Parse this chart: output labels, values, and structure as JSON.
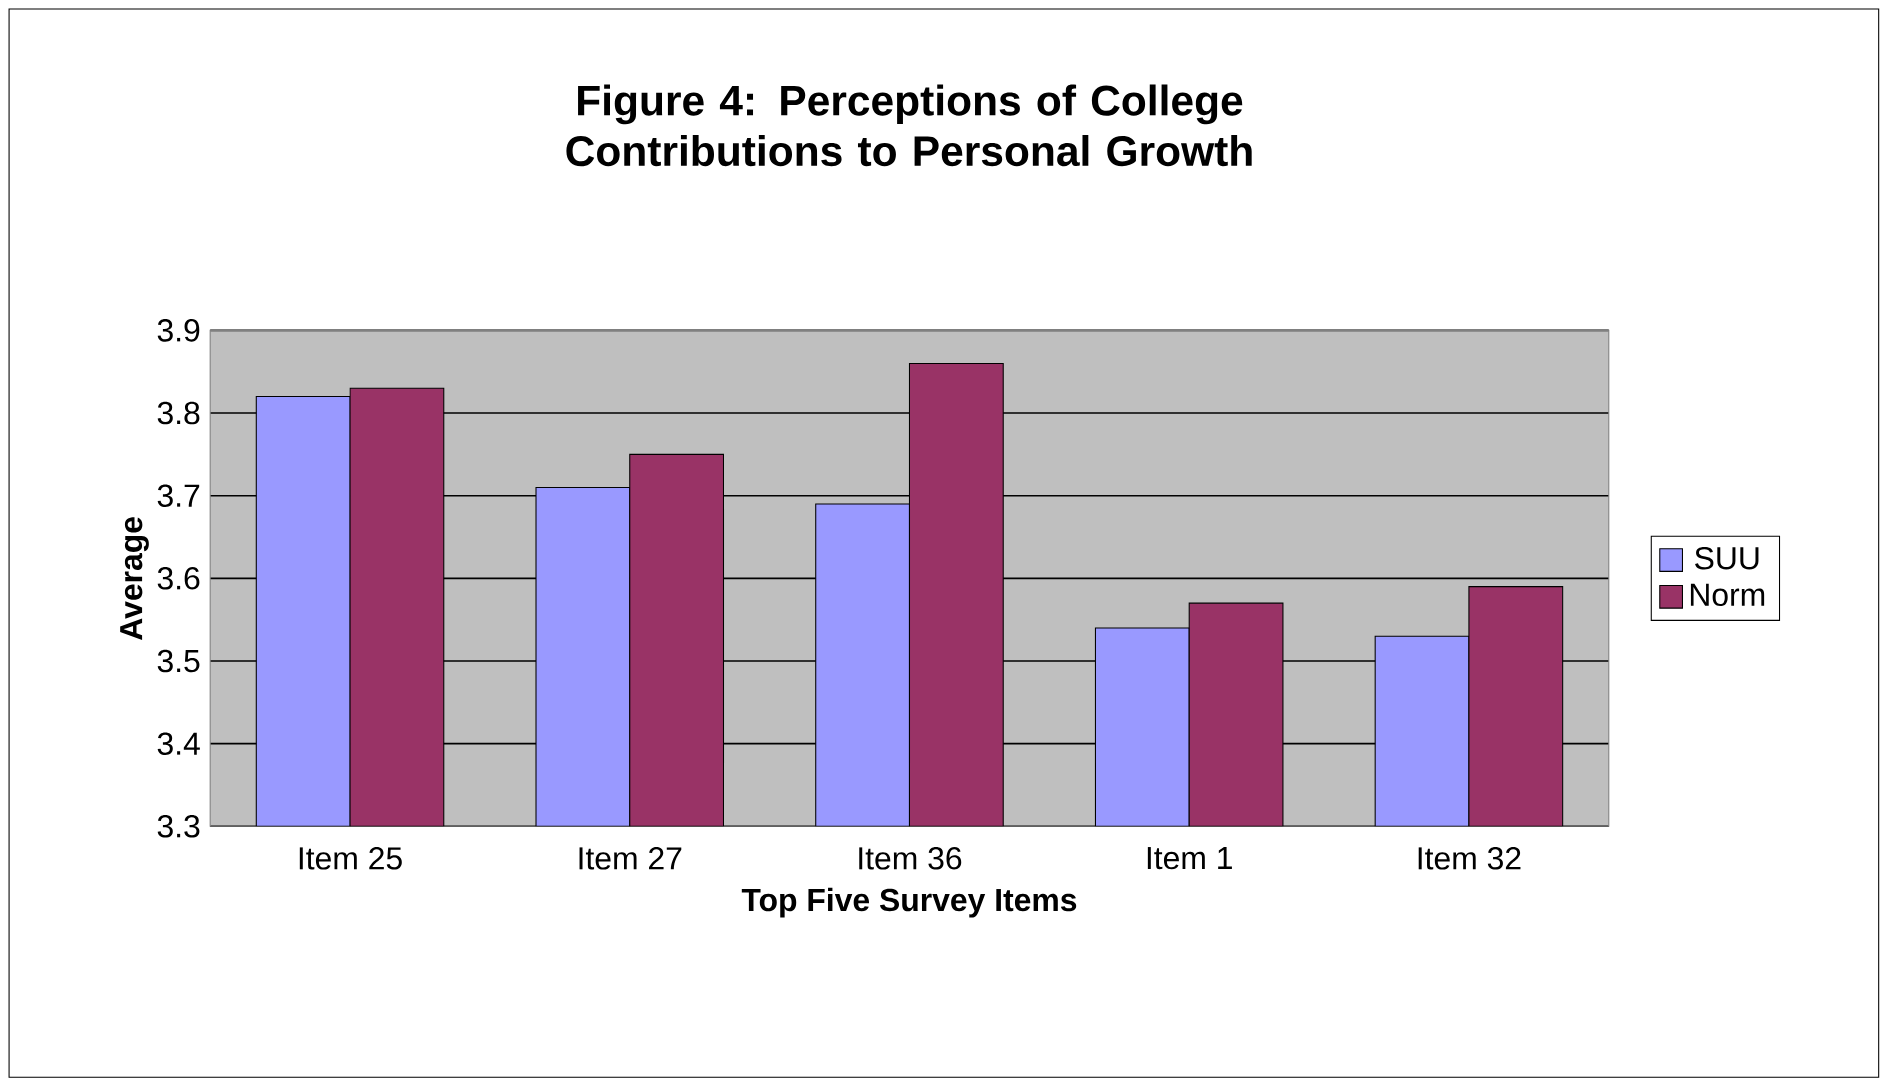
{
  "chart_data": {
    "type": "bar",
    "title": "Figure 4: Perceptions of College Contributions to Personal Growth",
    "xlabel": "Top Five Survey Items",
    "ylabel": "Average",
    "categories": [
      "Item 25",
      "Item 27",
      "Item 36",
      "Item 1",
      "Item 32"
    ],
    "series": [
      {
        "name": "SUU",
        "color": "#9999ff",
        "values": [
          3.82,
          3.71,
          3.69,
          3.54,
          3.53
        ]
      },
      {
        "name": "Norm",
        "color": "#993366",
        "values": [
          3.83,
          3.75,
          3.86,
          3.57,
          3.59
        ]
      }
    ],
    "ylim": [
      3.3,
      3.9
    ],
    "yticks": [
      3.3,
      3.4,
      3.5,
      3.6,
      3.7,
      3.8,
      3.9
    ],
    "grid": "y",
    "legend": "right"
  }
}
